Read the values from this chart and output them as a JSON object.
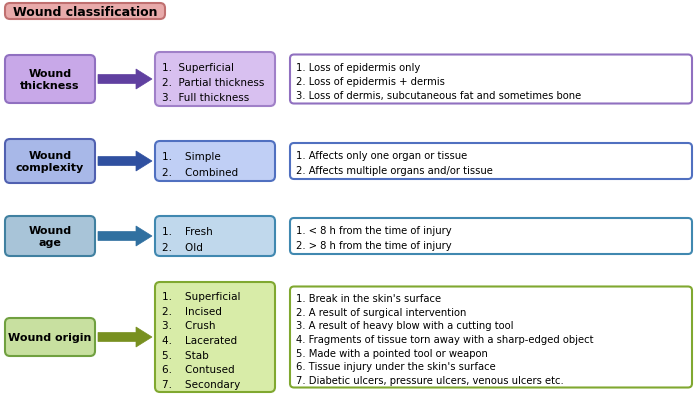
{
  "title": "Wound classification",
  "title_bg": "#E8AAAA",
  "title_border": "#C07070",
  "bg_color": "#FFFFFF",
  "rows": [
    {
      "label": "Wound\nthickness",
      "label_bg": "#C8A8E8",
      "label_border": "#9070C0",
      "arrow_color": "#6040A0",
      "middle_bg": "#D8C0F0",
      "middle_border": "#A080C8",
      "middle_items": [
        "1.  Superficial",
        "2.  Partial thickness",
        "3.  Full thickness"
      ],
      "right_bg": "#FFFFFF",
      "right_border": "#9070C0",
      "right_items": [
        "1. Loss of epidermis only",
        "2. Loss of epidermis + dermis",
        "3. Loss of dermis, subcutaneous fat and sometimes bone"
      ]
    },
    {
      "label": "Wound\ncomplexity",
      "label_bg": "#A8B8E8",
      "label_border": "#5060B0",
      "arrow_color": "#3050A0",
      "middle_bg": "#C0CFF5",
      "middle_border": "#5070C0",
      "middle_items": [
        "1.    Simple",
        "2.    Combined"
      ],
      "right_bg": "#FFFFFF",
      "right_border": "#5070C0",
      "right_items": [
        "1. Affects only one organ or tissue",
        "2. Affects multiple organs and/or tissue"
      ]
    },
    {
      "label": "Wound\nage",
      "label_bg": "#A8C4D8",
      "label_border": "#4080A0",
      "arrow_color": "#3070A0",
      "middle_bg": "#C0D8EC",
      "middle_border": "#4088B0",
      "middle_items": [
        "1.    Fresh",
        "2.    Old"
      ],
      "right_bg": "#FFFFFF",
      "right_border": "#4088B0",
      "right_items": [
        "1. < 8 h from the time of injury",
        "2. > 8 h from the time of injury"
      ]
    },
    {
      "label": "Wound origin",
      "label_bg": "#C8E0A0",
      "label_border": "#70A040",
      "arrow_color": "#789020",
      "middle_bg": "#D8ECA8",
      "middle_border": "#80A830",
      "middle_items": [
        "1.    Superficial",
        "2.    Incised",
        "3.    Crush",
        "4.    Lacerated",
        "5.    Stab",
        "6.    Contused",
        "7.    Secondary"
      ],
      "right_bg": "#FFFFFF",
      "right_border": "#80A830",
      "right_items": [
        "1. Break in the skin's surface",
        "2. A result of surgical intervention",
        "3. A result of heavy blow with a cutting tool",
        "4. Fragments of tissue torn away with a sharp-edged object",
        "5. Made with a pointed tool or weapon",
        "6. Tissue injury under the skin's surface",
        "7. Diabetic ulcers, pressure ulcers, venous ulcers etc."
      ]
    }
  ]
}
